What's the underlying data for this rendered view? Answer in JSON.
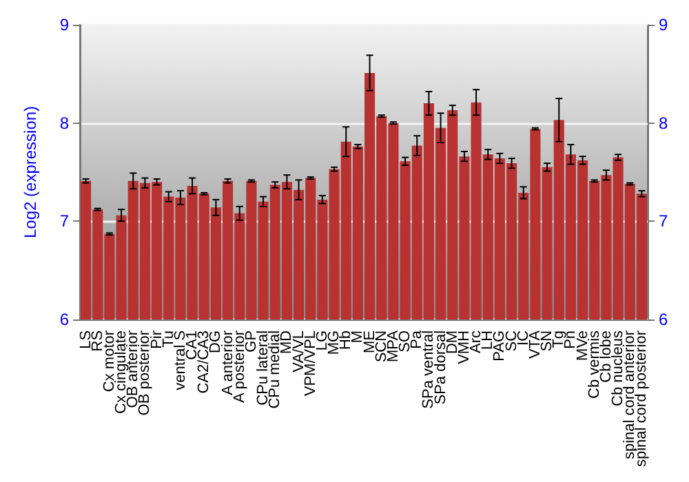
{
  "chart_data": {
    "type": "bar",
    "ylabel": "Log2 (expression)",
    "categories": [
      "LS",
      "RS",
      "Cx motor",
      "Cx cingulate",
      "OB anterior",
      "OB posterior",
      "Pir",
      "Tu",
      "ventral S",
      "CA1",
      "CA2/CA3",
      "DG",
      "A anterior",
      "A posterior",
      "GP",
      "CPu lateral",
      "CPu medial",
      "MD",
      "VA/VL",
      "VPM/VPL",
      "LG",
      "MG",
      "Hb",
      "M",
      "ME",
      "SCN",
      "MPA",
      "SO",
      "Pa",
      "SPa ventral",
      "SPa dorsal",
      "DM",
      "VMH",
      "Arc",
      "LH",
      "PAG",
      "SC",
      "IC",
      "VTA",
      "SN",
      "Tg",
      "Pn",
      "MVe",
      "Cb vermis",
      "Cb lobe",
      "Cb nucleus",
      "spinal cord anterior",
      "spinal cord posterior"
    ],
    "values": [
      7.41,
      7.12,
      6.87,
      7.06,
      7.41,
      7.39,
      7.4,
      7.25,
      7.24,
      7.36,
      7.28,
      7.14,
      7.41,
      7.08,
      7.41,
      7.2,
      7.37,
      7.4,
      7.32,
      7.44,
      7.22,
      7.53,
      7.81,
      7.76,
      8.51,
      8.07,
      8.0,
      7.61,
      7.77,
      8.2,
      7.95,
      8.13,
      7.66,
      8.21,
      7.68,
      7.64,
      7.59,
      7.29,
      7.94,
      7.55,
      8.03,
      7.68,
      7.62,
      7.41,
      7.47,
      7.65,
      7.38,
      7.28
    ],
    "errors": [
      0.02,
      0.01,
      0.01,
      0.06,
      0.08,
      0.05,
      0.03,
      0.05,
      0.07,
      0.08,
      0.01,
      0.08,
      0.02,
      0.07,
      0.01,
      0.05,
      0.03,
      0.07,
      0.1,
      0.01,
      0.04,
      0.02,
      0.15,
      0.02,
      0.18,
      0.01,
      0.01,
      0.04,
      0.1,
      0.12,
      0.15,
      0.05,
      0.05,
      0.13,
      0.05,
      0.05,
      0.05,
      0.06,
      0.01,
      0.04,
      0.22,
      0.1,
      0.04,
      0.01,
      0.05,
      0.03,
      0.01,
      0.03
    ],
    "color": "#b83232",
    "ylim": [
      6,
      9
    ],
    "yticks": [
      6,
      7,
      8,
      9
    ],
    "y2lim": [
      6,
      9
    ],
    "y2ticks": [
      6,
      7,
      8,
      9
    ],
    "grid": "y"
  }
}
